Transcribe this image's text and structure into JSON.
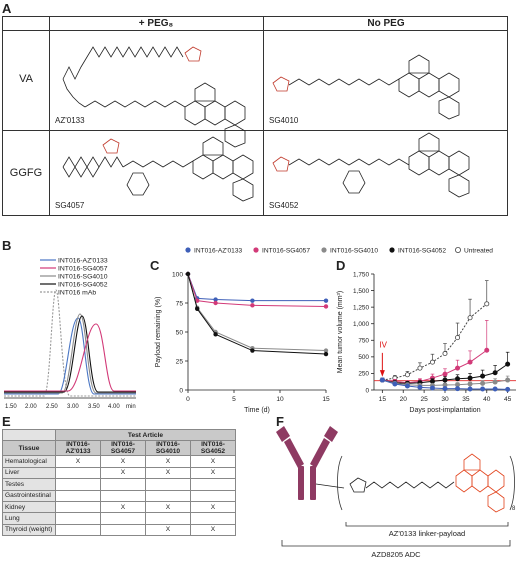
{
  "panel_letters": {
    "a": "A",
    "b": "B",
    "c": "C",
    "d": "D",
    "e": "E",
    "f": "F"
  },
  "panel_a": {
    "col_headers": [
      "+ PEG₈",
      "No PEG"
    ],
    "row_headers": [
      "VA",
      "GGFG"
    ],
    "compounds": [
      "AZ'0133",
      "SG4010",
      "SG4057",
      "SG4052"
    ]
  },
  "panel_b": {
    "legend": [
      "INT016-AZ'0133",
      "INT016-SG4057",
      "INT016-SG4010",
      "INT016-SG4052",
      "INT016 mAb"
    ],
    "legend_colors": [
      "#4a76c4",
      "#d23a78",
      "#8a8a8a",
      "#111111",
      "#999999"
    ],
    "x_ticks": [
      "1.50",
      "2.00",
      "2.50",
      "3.00",
      "3.50",
      "4.00"
    ],
    "x_unit": "min"
  },
  "legend_cd": {
    "items": [
      "INT016-AZ'0133",
      "INT016-SG4057",
      "INT016-SG4010",
      "INT016-SG4052",
      "Untreated"
    ],
    "colors": [
      "#3e5fb8",
      "#d23a78",
      "#8a8a8a",
      "#111111",
      "#ffffff"
    ]
  },
  "chart_data": [
    {
      "type": "line",
      "panel": "C",
      "ylabel": "Payload remaining (%)",
      "xlabel": "Time (d)",
      "xlim": [
        0,
        15
      ],
      "ylim": [
        0,
        100
      ],
      "x_ticks": [
        0,
        5,
        10,
        15
      ],
      "y_ticks": [
        0,
        25,
        50,
        75,
        100
      ],
      "x": [
        0,
        1,
        3,
        7,
        15
      ],
      "series": [
        {
          "name": "INT016-AZ'0133",
          "color": "#3e5fb8",
          "values": [
            100,
            79,
            78,
            77,
            77
          ]
        },
        {
          "name": "INT016-SG4057",
          "color": "#d23a78",
          "values": [
            100,
            77,
            75,
            73,
            72
          ]
        },
        {
          "name": "INT016-SG4010",
          "color": "#8a8a8a",
          "values": [
            100,
            71,
            50,
            36,
            34
          ]
        },
        {
          "name": "INT016-SG4052",
          "color": "#111111",
          "values": [
            100,
            70,
            48,
            34,
            31
          ]
        }
      ]
    },
    {
      "type": "line",
      "panel": "D",
      "ylabel": "Mean tumor volume (mm³)",
      "xlabel": "Days post-implantation",
      "xlim": [
        13,
        47
      ],
      "ylim": [
        0,
        1750
      ],
      "x_ticks": [
        15,
        20,
        25,
        30,
        35,
        40,
        45
      ],
      "y_ticks": [
        0,
        250,
        500,
        750,
        1000,
        1250,
        1500,
        1750
      ],
      "y_tick_labels": [
        "0",
        "250",
        "500",
        "750",
        "1,000",
        "1,250",
        "1,500",
        "1,750"
      ],
      "annotation": "IV",
      "annotation_x": 15,
      "reference_line_y": 140,
      "series": [
        {
          "name": "Untreated",
          "color": "#444444",
          "hollow": true,
          "x": [
            15,
            18,
            21,
            24,
            27,
            30,
            33,
            36,
            40
          ],
          "values": [
            150,
            180,
            230,
            330,
            420,
            550,
            790,
            1090,
            1300
          ],
          "err": [
            30,
            40,
            50,
            80,
            120,
            150,
            220,
            280,
            350
          ]
        },
        {
          "name": "INT016-SG4057",
          "color": "#d23a78",
          "x": [
            15,
            18,
            21,
            24,
            27,
            30,
            33,
            36,
            40
          ],
          "values": [
            150,
            130,
            110,
            130,
            180,
            240,
            330,
            420,
            600
          ],
          "err": [
            30,
            30,
            30,
            40,
            60,
            80,
            120,
            170,
            450
          ]
        },
        {
          "name": "INT016-SG4052",
          "color": "#111111",
          "x": [
            15,
            18,
            21,
            24,
            27,
            30,
            33,
            36,
            39,
            42,
            45
          ],
          "values": [
            150,
            110,
            100,
            110,
            130,
            150,
            170,
            180,
            210,
            260,
            390
          ],
          "err": [
            30,
            30,
            30,
            30,
            40,
            50,
            60,
            70,
            90,
            110,
            180
          ]
        },
        {
          "name": "INT016-SG4010",
          "color": "#8a8a8a",
          "x": [
            15,
            18,
            21,
            24,
            27,
            30,
            33,
            36,
            39,
            42,
            45
          ],
          "values": [
            150,
            100,
            80,
            70,
            70,
            75,
            80,
            90,
            100,
            120,
            150
          ],
          "err": [
            30,
            25,
            25,
            20,
            20,
            25,
            30,
            30,
            40,
            50,
            60
          ]
        },
        {
          "name": "INT016-AZ'0133",
          "color": "#3e5fb8",
          "x": [
            15,
            18,
            21,
            24,
            27,
            30,
            33,
            36,
            39,
            42,
            45
          ],
          "values": [
            150,
            90,
            60,
            40,
            30,
            20,
            20,
            15,
            15,
            15,
            10
          ],
          "err": [
            30,
            20,
            15,
            10,
            10,
            8,
            8,
            5,
            5,
            5,
            5
          ]
        }
      ]
    }
  ],
  "panel_e": {
    "header_span": "Test Article",
    "col_headers": [
      "Tissue",
      "INT016-AZ'0133",
      "INT016-SG4057",
      "INT016-SG4010",
      "INT016-SG4052"
    ],
    "rows": [
      [
        "Hematological",
        "X",
        "X",
        "X",
        "X"
      ],
      [
        "Liver",
        "",
        "X",
        "X",
        "X"
      ],
      [
        "Testes",
        "",
        "",
        "",
        ""
      ],
      [
        "Gastrointestinal",
        "",
        "",
        "",
        ""
      ],
      [
        "Kidney",
        "",
        "X",
        "X",
        "X"
      ],
      [
        "Lung",
        "",
        "",
        "",
        ""
      ],
      [
        "Thyroid (weight)",
        "",
        "",
        "X",
        "X"
      ]
    ]
  },
  "panel_f": {
    "label_linker": "AZ'0133 linker-payload",
    "label_adc": "AZD8205 ADC",
    "drug_ratio": "8"
  }
}
